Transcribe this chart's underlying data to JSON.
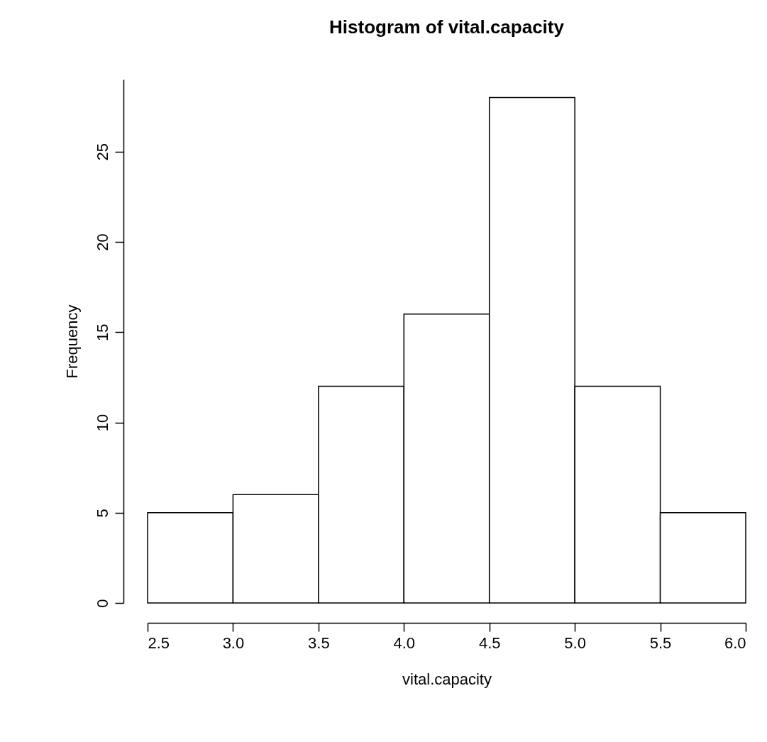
{
  "chart_data": {
    "type": "histogram",
    "title": "Histogram of vital.capacity",
    "xlabel": "vital.capacity",
    "ylabel": "Frequency",
    "bins": [
      2.5,
      3.0,
      3.5,
      4.0,
      4.5,
      5.0,
      5.5,
      6.0
    ],
    "values": [
      5,
      6,
      12,
      16,
      28,
      12,
      5
    ],
    "color": "#ffffff",
    "xlim": [
      2.5,
      6.0
    ],
    "xticks": [
      {
        "value": 2.5,
        "label": "2.5"
      },
      {
        "value": 3,
        "label": "3.0"
      },
      {
        "value": 3.5,
        "label": "3.5"
      },
      {
        "value": 4,
        "label": "4.0"
      },
      {
        "value": 4.5,
        "label": "4.5"
      },
      {
        "value": 5,
        "label": "5.0"
      },
      {
        "value": 5.5,
        "label": "5.5"
      },
      {
        "value": 6,
        "label": "6.0"
      }
    ],
    "ylim": [
      0,
      29
    ],
    "yticks": [
      0,
      5,
      10,
      15,
      20,
      25
    ],
    "grid": false
  }
}
